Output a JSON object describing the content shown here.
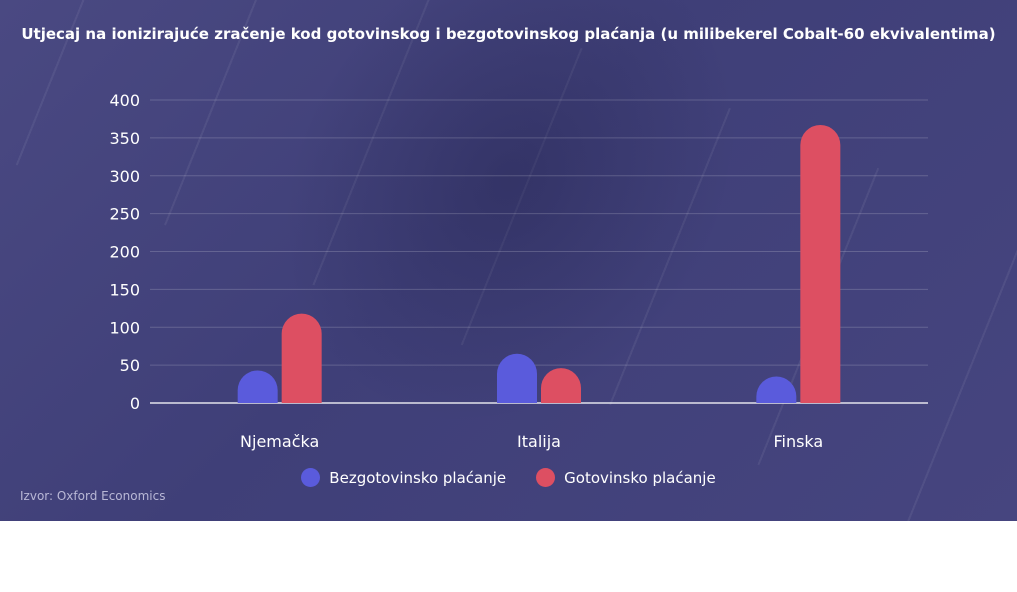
{
  "chart_data": {
    "type": "bar",
    "title": "Utjecaj na ionizirajuće zračenje kod gotovinskog i bezgotovinskog plaćanja (u milibekerel Cobalt-60 ekvivalentima)",
    "categories": [
      "Njemačka",
      "Italija",
      "Finska"
    ],
    "series": [
      {
        "name": "Bezgotovinsko plaćanje",
        "color": "#5a5bdc",
        "values": [
          43,
          65,
          35
        ]
      },
      {
        "name": "Gotovinsko plaćanje",
        "color": "#dd4f62",
        "values": [
          118,
          46,
          367
        ]
      }
    ],
    "ylim": [
      0,
      400
    ],
    "yticks": [
      0,
      50,
      100,
      150,
      200,
      250,
      300,
      350,
      400
    ],
    "grid": true,
    "legend_position": "bottom",
    "source": "Izvor: Oxford Economics"
  }
}
